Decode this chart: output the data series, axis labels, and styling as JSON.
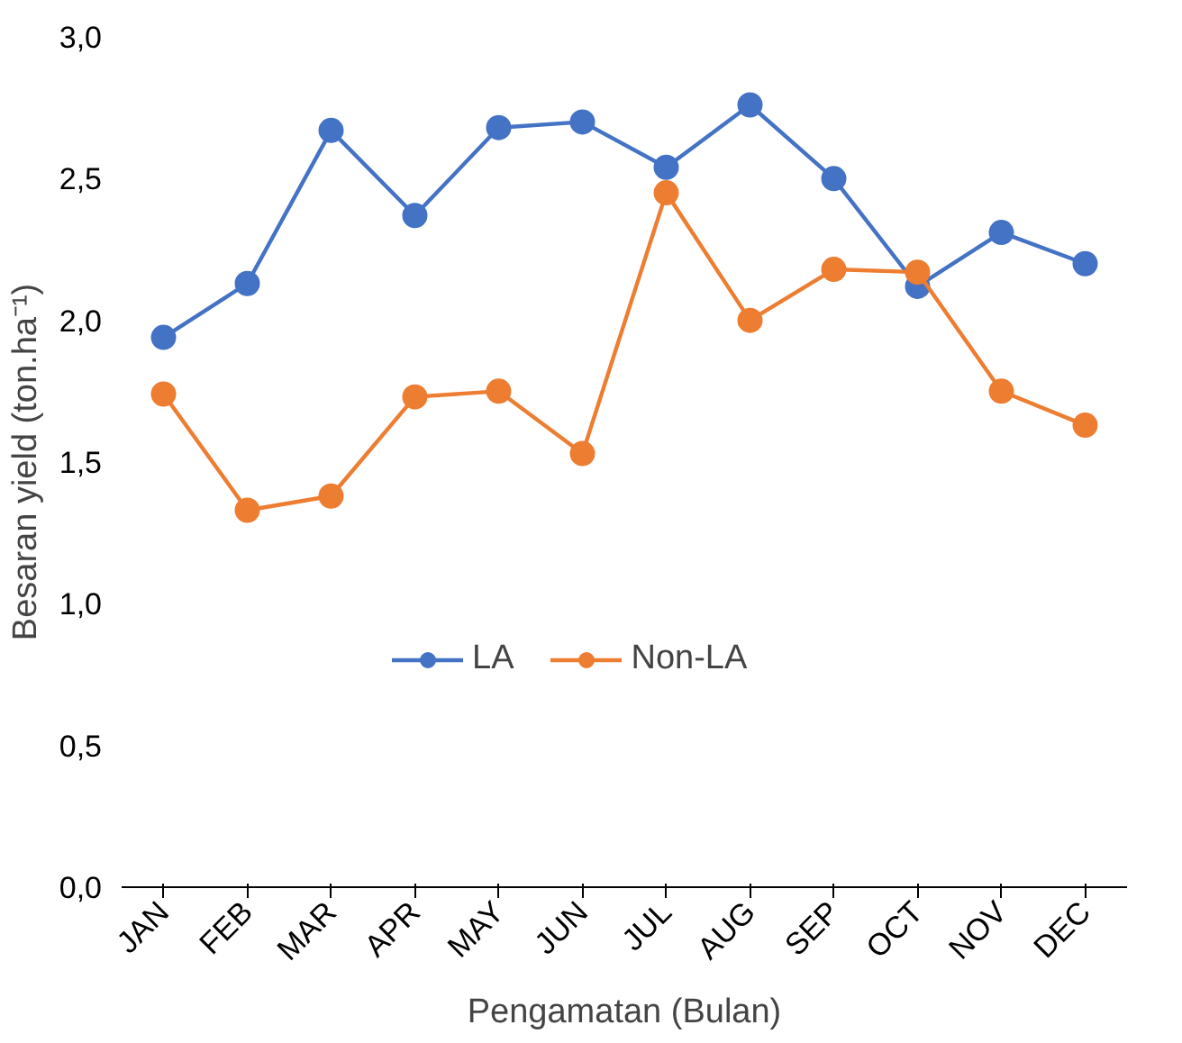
{
  "chart_data": {
    "type": "line",
    "xlabel": "Pengamatan (Bulan)",
    "ylabel": "Besaran yield (ton.ha⁻¹)",
    "categories": [
      "JAN",
      "FEB",
      "MAR",
      "APR",
      "MAY",
      "JUN",
      "JUL",
      "AUG",
      "SEP",
      "OCT",
      "NOV",
      "DEC"
    ],
    "series": [
      {
        "name": "LA",
        "color": "#4472c4",
        "values": [
          1.94,
          2.13,
          2.67,
          2.37,
          2.68,
          2.7,
          2.54,
          2.76,
          2.5,
          2.12,
          2.31,
          2.2
        ]
      },
      {
        "name": "Non-LA",
        "color": "#ed7d31",
        "values": [
          1.74,
          1.33,
          1.38,
          1.73,
          1.75,
          1.53,
          2.45,
          2.0,
          2.18,
          2.17,
          1.75,
          1.63
        ]
      }
    ],
    "ylim": [
      0,
      3
    ],
    "yticks": [
      {
        "value": 0,
        "label": "0,0"
      },
      {
        "value": 0.5,
        "label": "0,5"
      },
      {
        "value": 1,
        "label": "1,0"
      },
      {
        "value": 1.5,
        "label": "1,5"
      },
      {
        "value": 2,
        "label": "2,0"
      },
      {
        "value": 2.5,
        "label": "2,5"
      },
      {
        "value": 3,
        "label": "3,0"
      }
    ],
    "grid": false,
    "legend": "center",
    "marker": "circle",
    "line_style": "solid"
  }
}
